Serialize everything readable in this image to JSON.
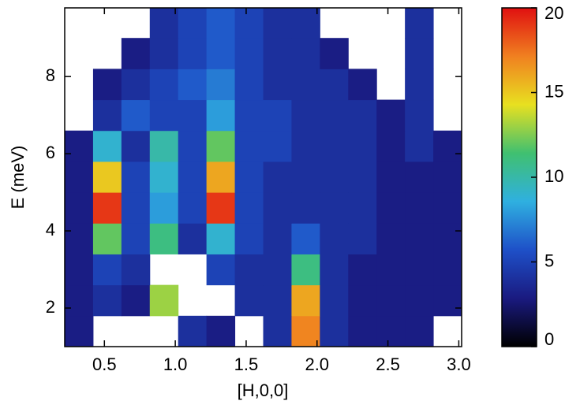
{
  "chart_data": {
    "type": "heatmap",
    "x_label": "[H,0,0]",
    "y_label": "E (meV)",
    "x_bins": [
      0.22,
      0.42,
      0.62,
      0.82,
      1.02,
      1.22,
      1.42,
      1.62,
      1.82,
      2.02,
      2.22,
      2.42,
      2.62,
      2.82,
      3.02
    ],
    "y_bins": [
      1.0,
      1.8,
      2.6,
      3.4,
      4.2,
      5.0,
      5.8,
      6.6,
      7.4,
      8.2,
      9.0,
      9.8
    ],
    "values": [
      [
        3,
        null,
        null,
        null,
        4,
        3,
        null,
        4,
        17,
        4,
        3,
        3,
        3,
        null
      ],
      [
        3,
        4,
        3,
        13,
        null,
        null,
        4,
        4,
        16,
        4,
        3,
        3,
        3,
        3
      ],
      [
        3,
        5,
        4,
        null,
        null,
        5,
        4,
        4,
        11,
        4,
        3,
        3,
        3,
        3
      ],
      [
        3,
        12,
        5,
        11,
        4,
        9,
        5,
        4,
        6,
        4,
        4,
        3,
        3,
        3
      ],
      [
        3,
        19,
        5,
        8,
        5,
        19,
        5,
        4,
        4,
        4,
        4,
        3,
        3,
        3
      ],
      [
        3,
        15,
        5,
        9,
        5,
        16,
        5,
        4,
        4,
        4,
        4,
        3,
        3,
        3
      ],
      [
        3,
        9,
        4,
        10,
        5,
        12,
        5,
        5,
        4,
        4,
        4,
        3,
        4,
        3
      ],
      [
        null,
        4,
        6,
        5,
        5,
        8,
        5,
        5,
        4,
        4,
        4,
        3,
        4,
        null
      ],
      [
        null,
        3,
        4,
        5,
        6,
        7,
        5,
        4,
        4,
        4,
        3,
        null,
        4,
        null
      ],
      [
        null,
        null,
        3,
        4,
        5,
        6,
        5,
        4,
        4,
        3,
        null,
        null,
        4,
        null
      ],
      [
        null,
        null,
        null,
        4,
        5,
        6,
        5,
        4,
        4,
        null,
        null,
        null,
        4,
        null
      ]
    ],
    "xlim": [
      0.22,
      3.02
    ],
    "ylim": [
      1.0,
      9.78
    ],
    "xticks": [
      0.5,
      {
        "value": 1,
        "label": "1.0"
      },
      1.5,
      {
        "value": 2,
        "label": "2.0"
      },
      2.5,
      {
        "value": 3,
        "label": "3.0"
      }
    ],
    "yticks": [
      2,
      4,
      6,
      8
    ],
    "clim": [
      0,
      20
    ],
    "cticks": [
      0,
      5,
      10,
      15,
      20
    ],
    "colormap": [
      "#000000",
      "#1a1a80",
      "#1e50c8",
      "#2fb0e0",
      "#40c070",
      "#e8e020",
      "#f08020",
      "#e01010"
    ]
  }
}
